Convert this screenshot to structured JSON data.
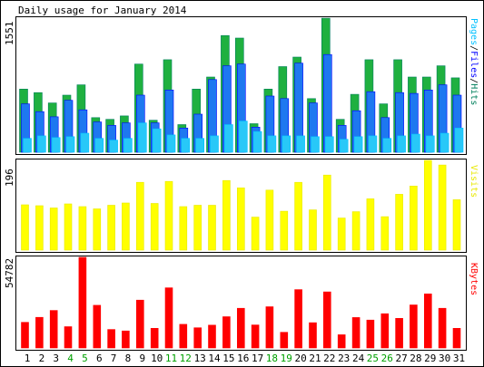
{
  "title": "Daily usage for January 2014",
  "colors": {
    "hits": "#00805c",
    "hits_fill": "#1fb040",
    "files": "#0000ff",
    "files_fill": "#1e78f0",
    "pages": "#00c0ff",
    "pages_fill": "#28c8f8",
    "visits": "#e8e800",
    "visits_fill": "#ffff00",
    "kbytes": "#ff0000",
    "kbytes_fill": "#ff0000",
    "weekend_label": "#00a000",
    "weekday_label": "#000000",
    "frame": "#000000",
    "background": "#ffffff",
    "panel_bg": "#ffffff"
  },
  "chart_data": [
    {
      "type": "bar",
      "panel": "hits",
      "ylabel_max": "1551",
      "right_label": [
        {
          "text": "Pages",
          "color": "#00c0ff"
        },
        {
          "text": "/",
          "color": "#000000"
        },
        {
          "text": "Files",
          "color": "#0000ff"
        },
        {
          "text": "/",
          "color": "#000000"
        },
        {
          "text": "Hits",
          "color": "#00805c"
        }
      ],
      "ymax": 1551,
      "categories": [
        "1",
        "2",
        "3",
        "4",
        "5",
        "6",
        "7",
        "8",
        "9",
        "10",
        "11",
        "12",
        "13",
        "14",
        "15",
        "16",
        "17",
        "18",
        "19",
        "20",
        "21",
        "22",
        "23",
        "24",
        "25",
        "26",
        "27",
        "28",
        "29",
        "30",
        "31"
      ],
      "series": [
        {
          "name": "Hits",
          "values": [
            730,
            690,
            570,
            660,
            780,
            400,
            380,
            420,
            1020,
            370,
            1070,
            320,
            730,
            870,
            1350,
            1320,
            330,
            730,
            990,
            1100,
            620,
            1550,
            380,
            670,
            1070,
            560,
            1070,
            870,
            870,
            1000,
            860
          ]
        },
        {
          "name": "Files",
          "values": [
            560,
            470,
            410,
            600,
            490,
            350,
            310,
            340,
            660,
            340,
            720,
            280,
            440,
            840,
            1000,
            1020,
            290,
            650,
            620,
            1030,
            570,
            1130,
            310,
            480,
            700,
            400,
            690,
            680,
            720,
            780,
            660
          ]
        },
        {
          "name": "Pages",
          "values": [
            160,
            190,
            170,
            180,
            220,
            160,
            140,
            160,
            340,
            270,
            200,
            160,
            160,
            190,
            320,
            360,
            240,
            190,
            190,
            190,
            180,
            180,
            150,
            180,
            190,
            160,
            190,
            210,
            190,
            220,
            280
          ]
        }
      ],
      "weekend_days": [
        "4",
        "5",
        "11",
        "12",
        "18",
        "19",
        "25",
        "26"
      ]
    },
    {
      "type": "bar",
      "panel": "visits",
      "ylabel_max": "196",
      "right_label": [
        {
          "text": "Visits",
          "color": "#e8e800"
        }
      ],
      "ymax": 196,
      "categories": [
        "1",
        "2",
        "3",
        "4",
        "5",
        "6",
        "7",
        "8",
        "9",
        "10",
        "11",
        "12",
        "13",
        "14",
        "15",
        "16",
        "17",
        "18",
        "19",
        "20",
        "21",
        "22",
        "23",
        "24",
        "25",
        "26",
        "27",
        "28",
        "29",
        "30",
        "31"
      ],
      "series": [
        {
          "name": "Visits",
          "values": [
            99,
            97,
            92,
            101,
            95,
            90,
            98,
            103,
            148,
            102,
            150,
            95,
            98,
            98,
            152,
            136,
            72,
            131,
            85,
            148,
            88,
            164,
            70,
            84,
            112,
            73,
            122,
            140,
            196,
            186,
            110
          ]
        }
      ]
    },
    {
      "type": "bar",
      "panel": "kbytes",
      "ylabel_max": "54782",
      "right_label": [
        {
          "text": "KBytes",
          "color": "#ff0000"
        }
      ],
      "ymax": 54782,
      "categories": [
        "1",
        "2",
        "3",
        "4",
        "5",
        "6",
        "7",
        "8",
        "9",
        "10",
        "11",
        "12",
        "13",
        "14",
        "15",
        "16",
        "17",
        "18",
        "19",
        "20",
        "21",
        "22",
        "23",
        "24",
        "25",
        "26",
        "27",
        "28",
        "29",
        "30",
        "31"
      ],
      "series": [
        {
          "name": "KBytes",
          "values": [
            15500,
            18500,
            22700,
            12900,
            54782,
            25800,
            11200,
            10300,
            28900,
            11900,
            36400,
            14300,
            12200,
            13800,
            18900,
            24000,
            13900,
            24900,
            9500,
            35300,
            15300,
            33900,
            8000,
            18400,
            16900,
            20700,
            17900,
            26000,
            32700,
            24000,
            11900
          ]
        }
      ]
    }
  ]
}
